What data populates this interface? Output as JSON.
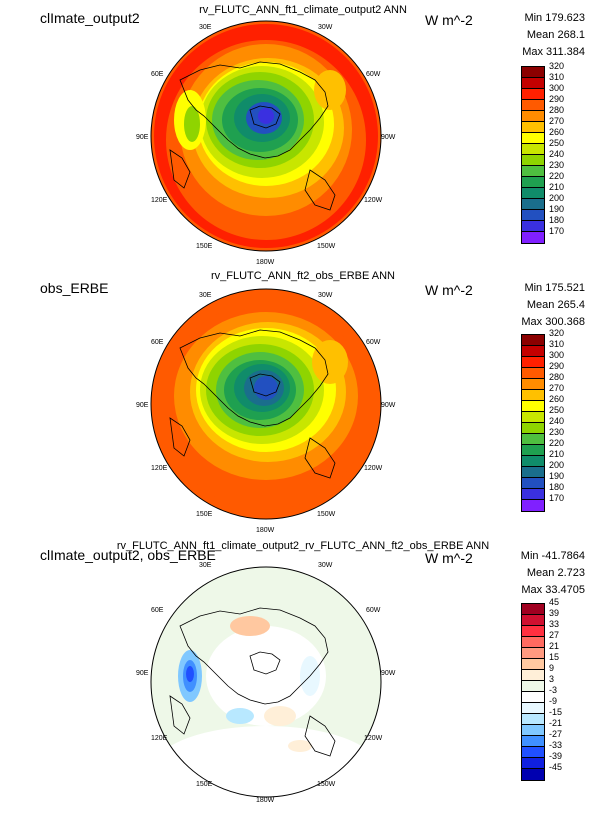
{
  "panels": [
    {
      "case_name": "clImate_output2",
      "title": "rv_FLUTC_ANN_ft1_climate_output2  ANN",
      "units": "W m^-2",
      "stats": {
        "min": "Min 179.623",
        "mean": "Mean 268.1",
        "max": "Max 311.384"
      },
      "legend_ticks": [
        "320",
        "310",
        "300",
        "290",
        "280",
        "270",
        "260",
        "250",
        "240",
        "230",
        "220",
        "210",
        "200",
        "190",
        "180",
        "170"
      ],
      "legend_colors": [
        "#8b0000",
        "#c40000",
        "#ff2000",
        "#ff5a00",
        "#ff8c00",
        "#ffc000",
        "#ffff00",
        "#c8e600",
        "#8fd400",
        "#4fbf40",
        "#1fa050",
        "#108c6a",
        "#1a6e8c",
        "#2250c0",
        "#3a30e0",
        "#8020ff"
      ]
    },
    {
      "case_name": "obs_ERBE",
      "title": "rv_FLUTC_ANN_ft2_obs_ERBE  ANN",
      "units": "W m^-2",
      "stats": {
        "min": "Min 175.521",
        "mean": "Mean 265.4",
        "max": "Max 300.368"
      },
      "legend_ticks": [
        "320",
        "310",
        "300",
        "290",
        "280",
        "270",
        "260",
        "250",
        "240",
        "230",
        "220",
        "210",
        "200",
        "190",
        "180",
        "170"
      ],
      "legend_colors": [
        "#8b0000",
        "#c40000",
        "#ff2000",
        "#ff5a00",
        "#ff8c00",
        "#ffc000",
        "#ffff00",
        "#c8e600",
        "#8fd400",
        "#4fbf40",
        "#1fa050",
        "#108c6a",
        "#1a6e8c",
        "#2250c0",
        "#3a30e0",
        "#8020ff"
      ]
    },
    {
      "case_name": "clImate_output2, obs_ERBE",
      "title": "rv_FLUTC_ANN_ft1_climate_output2_rv_FLUTC_ANN_ft2_obs_ERBE  ANN",
      "units": "W m^-2",
      "stats": {
        "min": "Min -41.7864",
        "mean": "Mean 2.723",
        "max": "Max 33.4705"
      },
      "legend_ticks": [
        "45",
        "39",
        "33",
        "27",
        "21",
        "15",
        "9",
        "3",
        "-3",
        "-9",
        "-15",
        "-21",
        "-27",
        "-33",
        "-39",
        "-45"
      ],
      "legend_colors": [
        "#a00020",
        "#d01030",
        "#ff3040",
        "#ff6a60",
        "#ff9a80",
        "#ffc8a0",
        "#ffefd8",
        "#eef8e8",
        "#ffffff",
        "#e8f8ff",
        "#b8e8ff",
        "#80c8ff",
        "#4090ff",
        "#2050ff",
        "#1020e0",
        "#0000b0"
      ]
    }
  ],
  "lon_labels": [
    "30E",
    "30W",
    "60E",
    "60W",
    "90E",
    "90W",
    "120E",
    "120W",
    "150E",
    "150W",
    "180W"
  ]
}
